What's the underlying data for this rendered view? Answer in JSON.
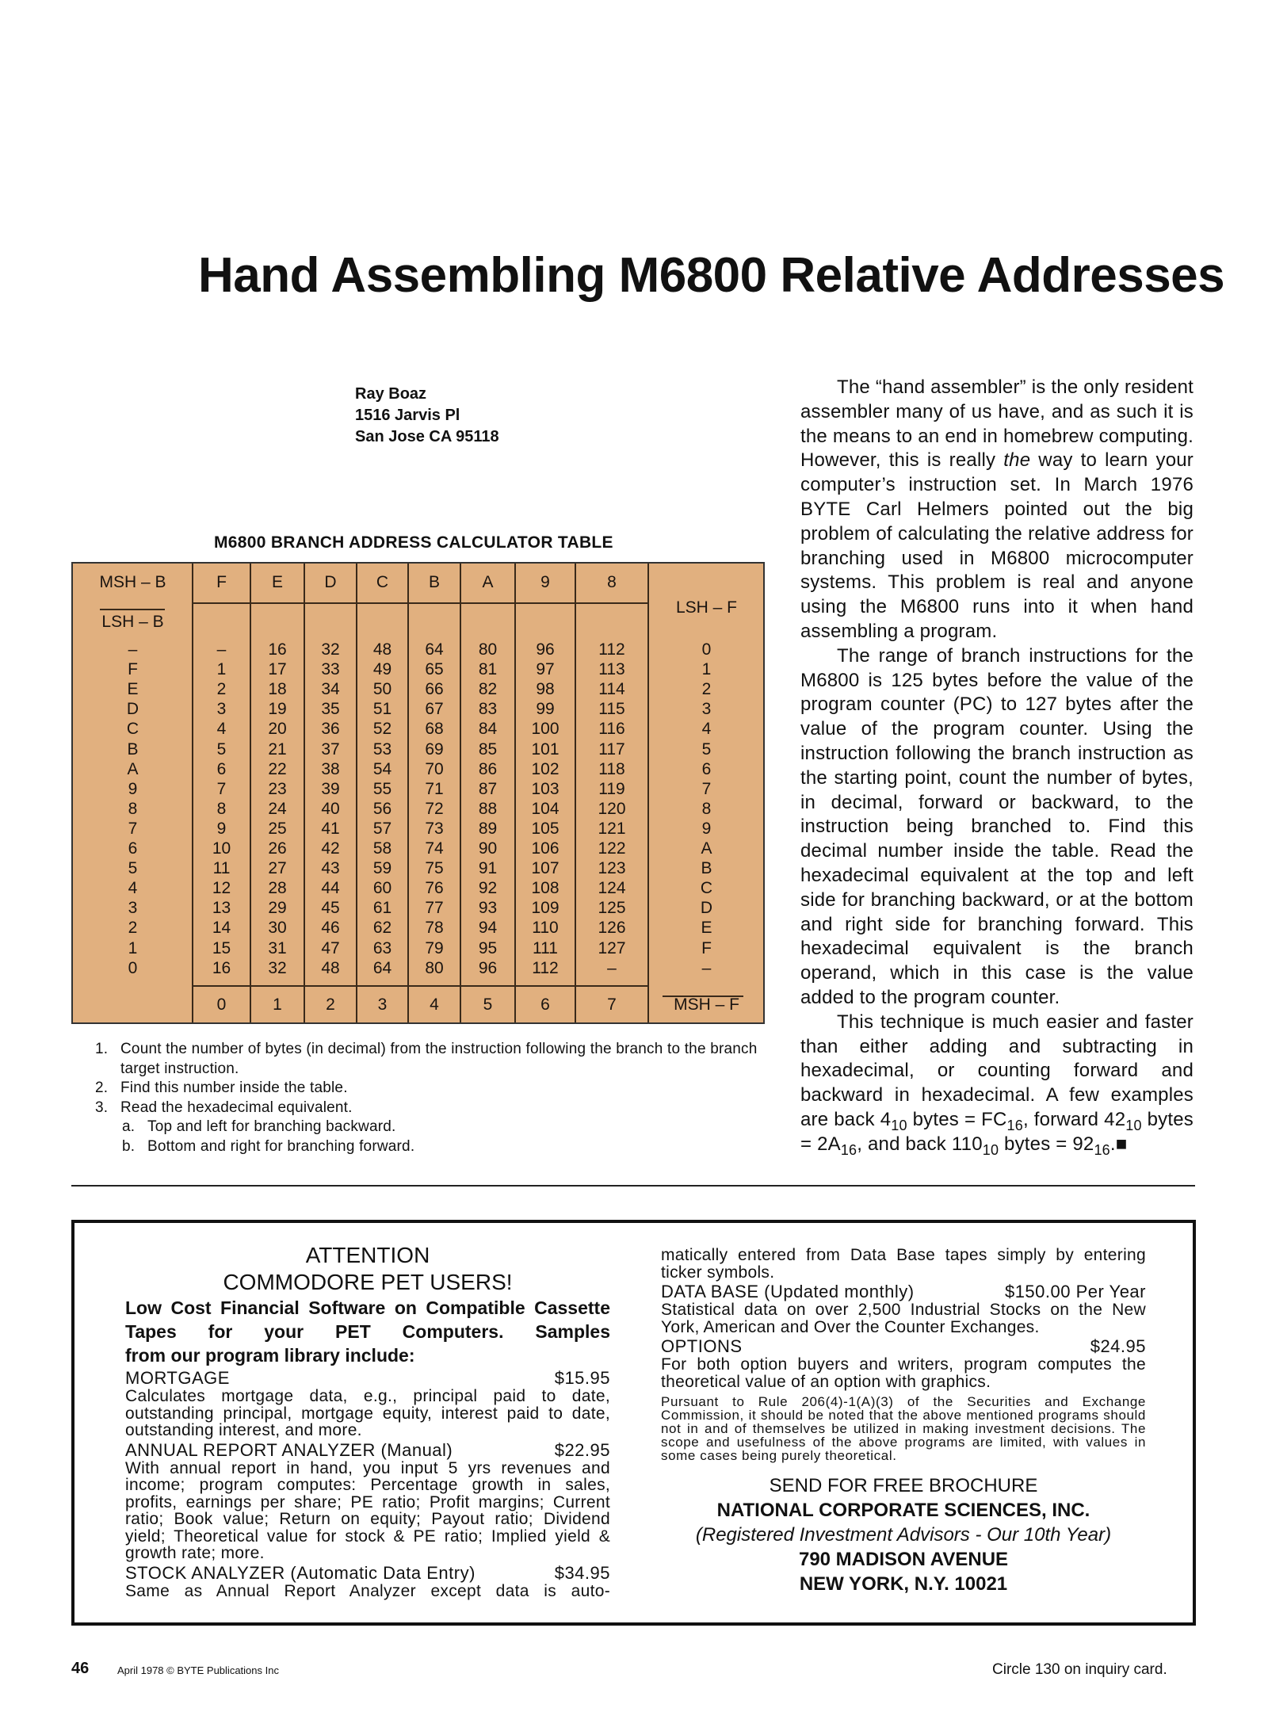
{
  "article": {
    "title": "Hand Assembling M6800 Relative Addresses",
    "author": [
      "Ray Boaz",
      "1516 Jarvis Pl",
      "San Jose CA 95118"
    ],
    "table_caption": "M6800 BRANCH ADDRESS CALCULATOR TABLE",
    "table": {
      "msh_b": "MSH – B",
      "lsh_b": "LSH – B",
      "lsh_f": "LSH – F",
      "msh_f": "MSH – F",
      "top_headers": [
        "F",
        "E",
        "D",
        "C",
        "B",
        "A",
        "9",
        "8"
      ],
      "bottom_headers": [
        "0",
        "1",
        "2",
        "3",
        "4",
        "5",
        "6",
        "7"
      ],
      "left_labels": [
        "–",
        "F",
        "E",
        "D",
        "C",
        "B",
        "A",
        "9",
        "8",
        "7",
        "6",
        "5",
        "4",
        "3",
        "2",
        "1",
        "0"
      ],
      "right_labels": [
        "0",
        "1",
        "2",
        "3",
        "4",
        "5",
        "6",
        "7",
        "8",
        "9",
        "A",
        "B",
        "C",
        "D",
        "E",
        "F",
        "–"
      ],
      "rows": [
        [
          "–",
          "16",
          "32",
          "48",
          "64",
          "80",
          "96",
          "112"
        ],
        [
          "1",
          "17",
          "33",
          "49",
          "65",
          "81",
          "97",
          "113"
        ],
        [
          "2",
          "18",
          "34",
          "50",
          "66",
          "82",
          "98",
          "114"
        ],
        [
          "3",
          "19",
          "35",
          "51",
          "67",
          "83",
          "99",
          "115"
        ],
        [
          "4",
          "20",
          "36",
          "52",
          "68",
          "84",
          "100",
          "116"
        ],
        [
          "5",
          "21",
          "37",
          "53",
          "69",
          "85",
          "101",
          "117"
        ],
        [
          "6",
          "22",
          "38",
          "54",
          "70",
          "86",
          "102",
          "118"
        ],
        [
          "7",
          "23",
          "39",
          "55",
          "71",
          "87",
          "103",
          "119"
        ],
        [
          "8",
          "24",
          "40",
          "56",
          "72",
          "88",
          "104",
          "120"
        ],
        [
          "9",
          "25",
          "41",
          "57",
          "73",
          "89",
          "105",
          "121"
        ],
        [
          "10",
          "26",
          "42",
          "58",
          "74",
          "90",
          "106",
          "122"
        ],
        [
          "11",
          "27",
          "43",
          "59",
          "75",
          "91",
          "107",
          "123"
        ],
        [
          "12",
          "28",
          "44",
          "60",
          "76",
          "92",
          "108",
          "124"
        ],
        [
          "13",
          "29",
          "45",
          "61",
          "77",
          "93",
          "109",
          "125"
        ],
        [
          "14",
          "30",
          "46",
          "62",
          "78",
          "94",
          "110",
          "126"
        ],
        [
          "15",
          "31",
          "47",
          "63",
          "79",
          "95",
          "111",
          "127"
        ],
        [
          "16",
          "32",
          "48",
          "64",
          "80",
          "96",
          "112",
          "–"
        ]
      ]
    },
    "instructions": [
      {
        "num": "1.",
        "text": "Count the number of bytes (in decimal) from the instruction following the branch to the branch target instruction."
      },
      {
        "num": "2.",
        "text": "Find this number inside the table."
      },
      {
        "num": "3.",
        "text": "Read the hexadecimal equivalent."
      }
    ],
    "sub_instructions": [
      {
        "num": "a.",
        "text": "Top and left for branching backward."
      },
      {
        "num": "b.",
        "text": "Bottom and right for branching forward."
      }
    ],
    "body": {
      "p1_a": "The “hand assembler” is the only resident assembler many of us have, and as such it is the means to an end in homebrew computing. However, this is really ",
      "p1_em": "the",
      "p1_b": " way to learn your computer’s instruction set. In March 1976 BYTE Carl Helmers pointed out the big problem of calculating the relative address for branching used in M6800 microcomputer systems. This problem is real and anyone using the M6800 runs into it when hand assembling a program.",
      "p2": "The range of branch instructions for the M6800 is 125 bytes before the value of the program counter (PC) to 127 bytes after the value of the program counter. Using the instruction following the branch instruction as the starting point, count the number of bytes, in decimal, forward or backward, to the instruction being branched to. Find this decimal number inside the table. Read the hexadecimal equivalent at the top and left side for branching backward, or at the bottom and right side for branching forward. This hexadecimal equivalent is the branch operand, which in this case is the value added to the program counter.",
      "p3_segments": [
        {
          "t": "This technique is much easier and faster than either adding and subtracting in hexadecimal, or counting forward and backward in hexadecimal. A few examples are back 4"
        },
        {
          "s": "10"
        },
        {
          "t": " bytes = FC"
        },
        {
          "s": "16"
        },
        {
          "t": ", forward 42"
        },
        {
          "s": "10"
        },
        {
          "t": " bytes = 2A"
        },
        {
          "s": "16"
        },
        {
          "t": ", and back 110"
        },
        {
          "s": "10"
        },
        {
          "t": " bytes = 92"
        },
        {
          "s": "16"
        },
        {
          "t": ".■"
        }
      ]
    }
  },
  "ad": {
    "heading1": "ATTENTION",
    "heading2": "COMMODORE PET USERS!",
    "intro": "Low Cost Financial Software on Compatible Cassette Tapes for your PET Computers. Samples",
    "intro_last": "from our program library include:",
    "products": [
      {
        "name": "MORTGAGE",
        "price": "$15.95",
        "desc": "Calculates mortgage data, e.g., principal paid to date, outstanding principal, mortgage equity, interest paid to date, outstanding interest, and more."
      },
      {
        "name": "ANNUAL REPORT ANALYZER (Manual)",
        "price": "$22.95",
        "desc": "With annual report in hand, you input 5 yrs revenues and income; program computes: Percentage growth in sales, profits, earnings per share; PE ratio; Profit margins; Current ratio; Book value; Return on equity; Payout ratio; Dividend yield; Theoretical value for stock & PE ratio; Implied yield & growth rate; more."
      },
      {
        "name": "STOCK ANALYZER (Automatic Data Entry)",
        "price": "$34.95",
        "desc": "Same as Annual Report Analyzer except data is auto-"
      },
      {
        "name": "",
        "price": "",
        "desc": "matically entered from Data Base tapes simply by entering ticker symbols."
      },
      {
        "name": "DATA BASE (Updated monthly)",
        "price": "$150.00 Per Year",
        "desc": "Statistical data on over 2,500 Industrial Stocks on the New York, American and Over the Counter Exchanges."
      },
      {
        "name": "OPTIONS",
        "price": "$24.95",
        "desc": "For both option buyers and writers, program computes the theoretical value of an option with graphics."
      }
    ],
    "disclaimer": "Pursuant to Rule 206(4)-1(A)(3) of the Securities and Exchange Commission, it should be noted that the above mentioned programs should not in and of themselves be utilized in making investment decisions. The scope and usefulness of the above programs are limited, with values in some cases being purely theoretical.",
    "brochure": "SEND FOR FREE BROCHURE",
    "company": "NATIONAL CORPORATE SCIENCES, INC.",
    "tagline": "(Registered Investment Advisors - Our 10th Year)",
    "street": "790 MADISON AVENUE",
    "city": "NEW YORK, N.Y.  10021"
  },
  "footer": {
    "page_number": "46",
    "date_copyright": "April 1978 © BYTE Publications Inc",
    "inquiry": "Circle 130 on inquiry card."
  },
  "colors": {
    "table_bg": "#e1b07f",
    "text": "#111111"
  }
}
